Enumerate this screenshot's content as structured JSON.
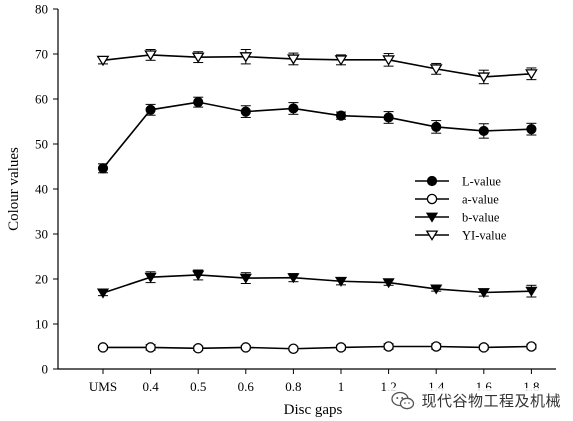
{
  "chart_data": {
    "type": "line",
    "title": "",
    "xlabel": "Disc gaps",
    "ylabel": "Colour values",
    "ylim": [
      0,
      80
    ],
    "yticks": [
      0,
      10,
      20,
      30,
      40,
      50,
      60,
      70,
      80
    ],
    "categories": [
      "UMS",
      "0.4",
      "0.5",
      "0.6",
      "0.8",
      "1",
      "1.2",
      "1.4",
      "1.6",
      "1.8"
    ],
    "grid": false,
    "legend_position": "center-right",
    "series": [
      {
        "name": "L-value",
        "marker": "filled-circle",
        "values": [
          44.6,
          57.6,
          59.3,
          57.2,
          57.9,
          56.3,
          55.9,
          53.8,
          52.9,
          53.3
        ],
        "errors": [
          1.0,
          1.2,
          1.1,
          1.3,
          1.3,
          0.8,
          1.3,
          1.4,
          1.6,
          1.3
        ]
      },
      {
        "name": "a-value",
        "marker": "open-circle",
        "values": [
          4.8,
          4.8,
          4.6,
          4.8,
          4.5,
          4.8,
          5.0,
          5.0,
          4.8,
          5.0
        ],
        "errors": [
          0.4,
          0.6,
          0.5,
          0.4,
          0.4,
          0.5,
          0.6,
          0.6,
          0.5,
          0.5
        ]
      },
      {
        "name": "b-value",
        "marker": "filled-triangle-down",
        "values": [
          16.9,
          20.4,
          20.9,
          20.2,
          20.3,
          19.5,
          19.2,
          17.8,
          17.0,
          17.3
        ],
        "errors": [
          0.6,
          1.2,
          1.1,
          1.2,
          0.9,
          0.8,
          0.6,
          0.5,
          0.8,
          1.3
        ]
      },
      {
        "name": "YI-value",
        "marker": "open-triangle-down",
        "values": [
          68.6,
          69.8,
          69.3,
          69.4,
          68.9,
          68.7,
          68.7,
          66.7,
          64.9,
          65.6
        ],
        "errors": [
          0.8,
          1.2,
          1.2,
          1.6,
          1.3,
          1.1,
          1.4,
          1.2,
          1.5,
          1.3
        ]
      }
    ]
  },
  "watermark": {
    "text": "现代谷物工程及机械",
    "icon": "wechat-icon"
  }
}
